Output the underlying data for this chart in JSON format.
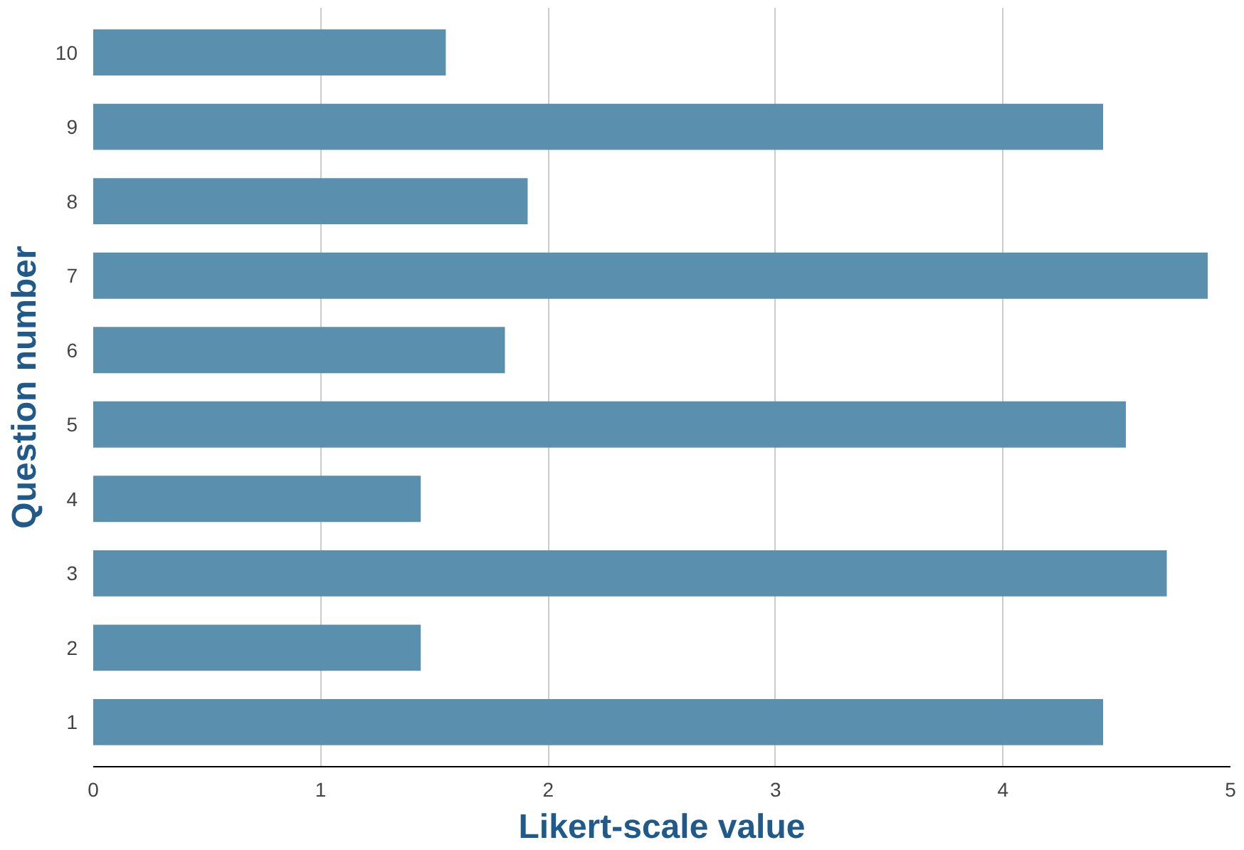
{
  "chart_data": {
    "type": "bar",
    "orientation": "horizontal",
    "xlabel": "Likert-scale value",
    "ylabel": "Question number",
    "categories": [
      "10",
      "9",
      "8",
      "7",
      "6",
      "5",
      "4",
      "3",
      "2",
      "1"
    ],
    "values": [
      1.55,
      4.44,
      1.91,
      4.9,
      1.81,
      4.54,
      1.44,
      4.72,
      1.44,
      4.44
    ],
    "color": "#5a8fae",
    "xlim": [
      0,
      5
    ],
    "xticks": [
      0,
      1,
      2,
      3,
      4,
      5
    ],
    "grid": "x"
  }
}
